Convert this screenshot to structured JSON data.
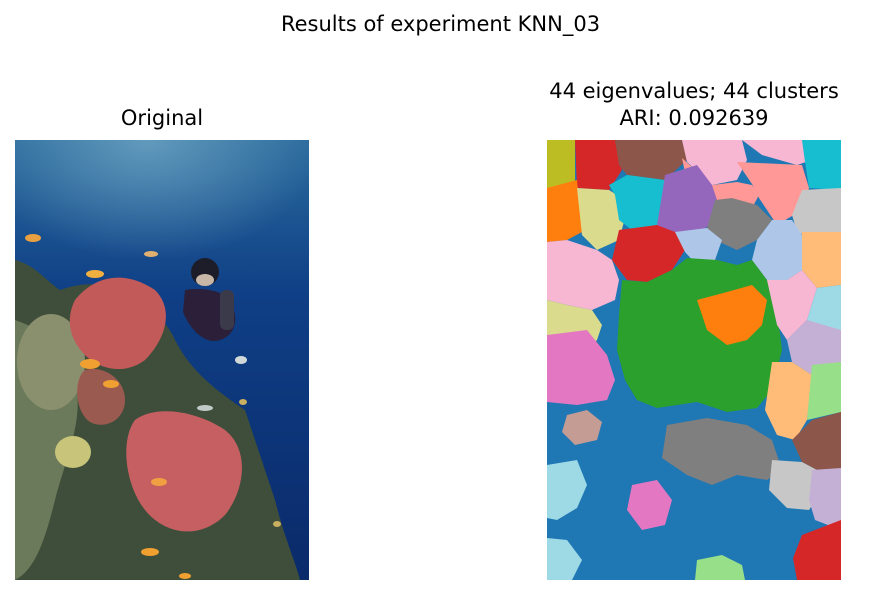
{
  "figure": {
    "suptitle": "Results of experiment KNN_03"
  },
  "left_panel": {
    "title": "Original"
  },
  "right_panel": {
    "title_line1": "44 eigenvalues; 44 clusters",
    "title_line2": "ARI: 0.092639"
  },
  "palette": {
    "blue": "#1f77b4",
    "orange": "#ff7f0e",
    "green": "#2ca02c",
    "red": "#d62728",
    "purple": "#9467bd",
    "brown": "#8c564b",
    "pink": "#e377c2",
    "gray": "#7f7f7f",
    "olive": "#bcbd22",
    "cyan": "#17becf",
    "lightblue": "#aec7e8",
    "peach": "#ffbb78",
    "lightgreen": "#98df8a",
    "salmon": "#ff9896",
    "lavender": "#c5b0d5",
    "tan": "#c49c94",
    "lightpink": "#f7b6d2",
    "lightgray": "#c7c7c7",
    "khaki": "#dbdb8d",
    "paleblue": "#9edae5"
  }
}
